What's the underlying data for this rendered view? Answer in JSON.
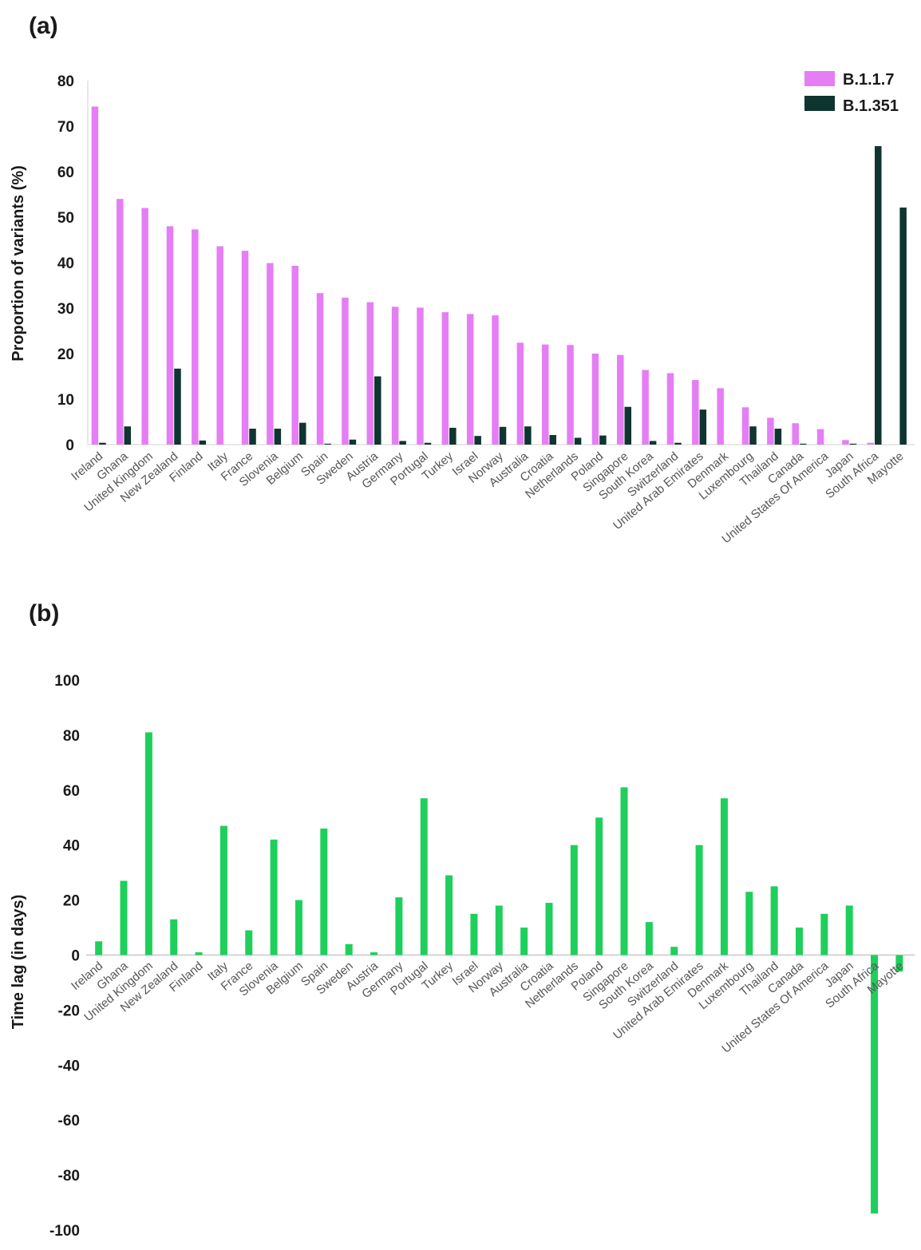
{
  "chart_data": [
    {
      "panel": "(a)",
      "type": "bar",
      "ylabel": "Proportion of variants (%)",
      "ylim": [
        0,
        80
      ],
      "yticks": [
        "0",
        "10",
        "20",
        "30",
        "40",
        "50",
        "60",
        "70",
        "80"
      ],
      "legend_position": "top-right",
      "categories": [
        "Ireland",
        "Ghana",
        "United Kingdom",
        "New Zealand",
        "Finland",
        "Italy",
        "France",
        "Slovenia",
        "Belgium",
        "Spain",
        "Sweden",
        "Austria",
        "Germany",
        "Portugal",
        "Turkey",
        "Israel",
        "Norway",
        "Australia",
        "Croatia",
        "Netherlands",
        "Poland",
        "Singapore",
        "South Korea",
        "Switzerland",
        "United Arab Emirates",
        "Denmark",
        "Luxembourg",
        "Thailand",
        "Canada",
        "United States Of America",
        "Japan",
        "South Africa",
        "Mayotte"
      ],
      "series": [
        {
          "name": "B.1.1.7",
          "color": "#e57ef5",
          "values": [
            74.3,
            54,
            52,
            48,
            47.3,
            43.6,
            42.6,
            39.9,
            39.3,
            33.3,
            32.3,
            31.3,
            30.3,
            30.1,
            29.1,
            28.7,
            28.4,
            22.4,
            22.0,
            21.9,
            20.0,
            19.7,
            16.4,
            15.7,
            14.2,
            12.4,
            8.2,
            5.9,
            4.7,
            3.4,
            1.0,
            0.4,
            0
          ]
        },
        {
          "name": "B.1.351",
          "color": "#0e3530",
          "values": [
            0.4,
            4.0,
            0,
            16.7,
            0.9,
            0,
            3.5,
            3.5,
            4.8,
            0.2,
            1.1,
            15.0,
            0.8,
            0.4,
            3.7,
            1.9,
            3.9,
            4.0,
            2.1,
            1.5,
            2.0,
            8.3,
            0.8,
            0.4,
            7.7,
            0,
            4.0,
            3.5,
            0.2,
            0,
            0.2,
            65.6,
            52.1
          ]
        }
      ]
    },
    {
      "panel": "(b)",
      "type": "bar",
      "ylabel": "Time lag (in days)",
      "ylim": [
        -100,
        100
      ],
      "yticks": [
        "-100",
        "-80",
        "-60",
        "-40",
        "-20",
        "0",
        "20",
        "40",
        "60",
        "80",
        "100"
      ],
      "categories": [
        "Ireland",
        "Ghana",
        "United Kingdom",
        "New Zealand",
        "Finland",
        "Italy",
        "France",
        "Slovenia",
        "Belgium",
        "Spain",
        "Sweden",
        "Austria",
        "Germany",
        "Portugal",
        "Turkey",
        "Israel",
        "Norway",
        "Australia",
        "Croatia",
        "Netherlands",
        "Poland",
        "Singapore",
        "South Korea",
        "Switzerland",
        "United Arab Emirates",
        "Denmark",
        "Luxembourg",
        "Thailand",
        "Canada",
        "United States Of America",
        "Japan",
        "South Africa",
        "Mayotte"
      ],
      "series": [
        {
          "color": "#1fcf5c",
          "values": [
            5,
            27,
            81,
            13,
            1,
            47,
            9,
            42,
            20,
            46,
            4,
            1,
            21,
            57,
            29,
            15,
            18,
            10,
            19,
            40,
            50,
            61,
            12,
            3,
            40,
            57,
            23,
            25,
            10,
            15,
            18,
            -94,
            -6
          ]
        }
      ]
    }
  ]
}
